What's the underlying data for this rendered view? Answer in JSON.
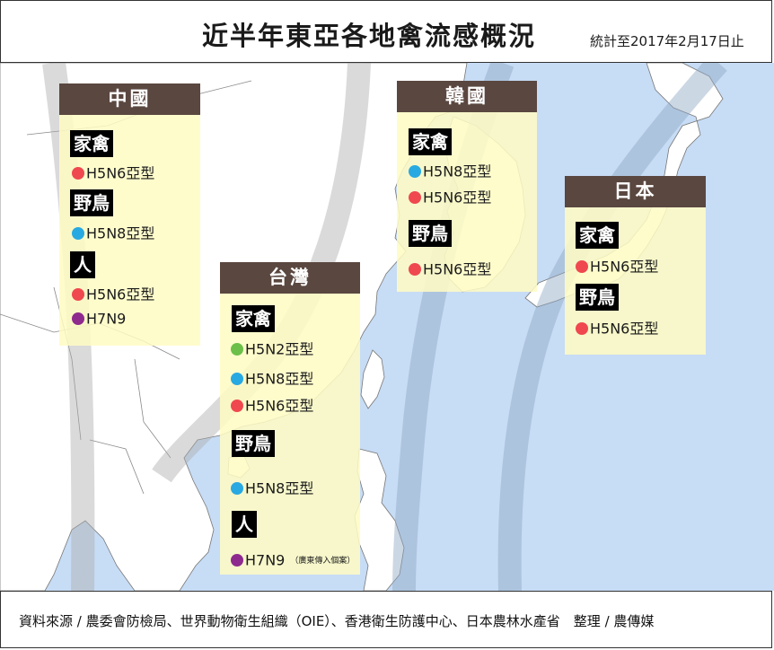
{
  "title": "近半年東亞各地禽流感概況",
  "subtitle": "統計至2017年2月17日止",
  "footer": "資料來源 / 農委會防檢局、世界動物衛生組織（OIE）、香港衛生防護中心、日本農林水產省　整理 / 農傳媒",
  "colors": {
    "red": "#f0484f",
    "blue": "#29a9e1",
    "green": "#6cc04a",
    "purple": "#8e2a8e",
    "panel_head": "#5a4740",
    "sea": "#c7dcf5",
    "land": "#ffffff"
  },
  "panels": {
    "china": {
      "title": "中國",
      "cat1": "家禽",
      "cat1_item1": "H5N6亞型",
      "cat2": "野鳥",
      "cat2_item1": "H5N8亞型",
      "cat3": "人",
      "cat3_item1": "H5N6亞型",
      "cat3_item2": "H7N9"
    },
    "korea": {
      "title": "韓國",
      "cat1": "家禽",
      "cat1_item1": "H5N8亞型",
      "cat1_item2": "H5N6亞型",
      "cat2": "野鳥",
      "cat2_item1": "H5N6亞型"
    },
    "japan": {
      "title": "日本",
      "cat1": "家禽",
      "cat1_item1": "H5N6亞型",
      "cat2": "野鳥",
      "cat2_item1": "H5N6亞型"
    },
    "taiwan": {
      "title": "台灣",
      "cat1": "家禽",
      "cat1_item1": "H5N2亞型",
      "cat1_item2": "H5N8亞型",
      "cat1_item3": "H5N6亞型",
      "cat2": "野鳥",
      "cat2_item1": "H5N8亞型",
      "cat3": "人",
      "cat3_item1": "H7N9",
      "cat3_item1_note": "（廣東傳入個案）"
    }
  }
}
